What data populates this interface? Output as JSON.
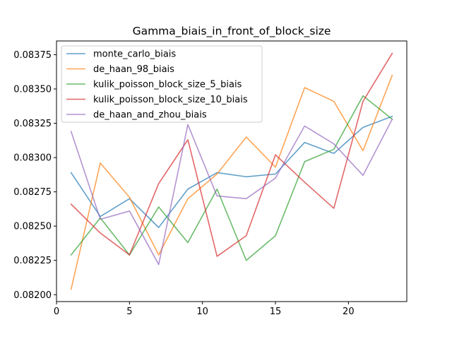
{
  "chart_data": {
    "type": "line",
    "title": "Gamma_biais_in_front_of_block_size",
    "xlabel": "",
    "ylabel": "",
    "xlim": [
      0,
      24
    ],
    "ylim": [
      0.08195,
      0.08385
    ],
    "x_ticks": [
      0,
      5,
      10,
      15,
      20
    ],
    "x_tick_labels": [
      "0",
      "5",
      "10",
      "15",
      "20"
    ],
    "y_ticks": [
      0.082,
      0.08225,
      0.0825,
      0.08275,
      0.083,
      0.08325,
      0.0835,
      0.08375
    ],
    "y_tick_labels": [
      "0.08200",
      "0.08225",
      "0.08250",
      "0.08275",
      "0.08300",
      "0.08325",
      "0.08350",
      "0.08375"
    ],
    "grid": false,
    "legend_position": "top-left",
    "x": [
      1,
      3,
      5,
      7,
      9,
      11,
      13,
      15,
      17,
      19,
      21,
      23
    ],
    "series": [
      {
        "name": "monte_carlo_biais",
        "color": "#1f77b4",
        "values": [
          0.08289,
          0.08257,
          0.0827,
          0.08249,
          0.08277,
          0.08289,
          0.08286,
          0.08288,
          0.08311,
          0.08303,
          0.08322,
          0.0833
        ]
      },
      {
        "name": "de_haan_98_biais",
        "color": "#ff7f0e",
        "values": [
          0.08204,
          0.08296,
          0.08271,
          0.08229,
          0.0827,
          0.08288,
          0.08315,
          0.08293,
          0.08351,
          0.08341,
          0.08305,
          0.0836
        ]
      },
      {
        "name": "kulik_poisson_block_size_5_biais",
        "color": "#2ca02c",
        "values": [
          0.08229,
          0.08256,
          0.08229,
          0.08264,
          0.08238,
          0.08277,
          0.08225,
          0.08243,
          0.08297,
          0.08306,
          0.08345,
          0.08328
        ]
      },
      {
        "name": "kulik_poisson_block_size_10_biais",
        "color": "#d62728",
        "values": [
          0.08266,
          0.08245,
          0.08229,
          0.08281,
          0.08313,
          0.08228,
          0.08243,
          0.08302,
          0.08282,
          0.08263,
          0.08341,
          0.08376
        ]
      },
      {
        "name": "de_haan_and_zhou_biais",
        "color": "#9467bd",
        "values": [
          0.08319,
          0.08255,
          0.08261,
          0.08222,
          0.08324,
          0.08272,
          0.0827,
          0.08285,
          0.08323,
          0.0831,
          0.08287,
          0.08328
        ]
      }
    ]
  }
}
